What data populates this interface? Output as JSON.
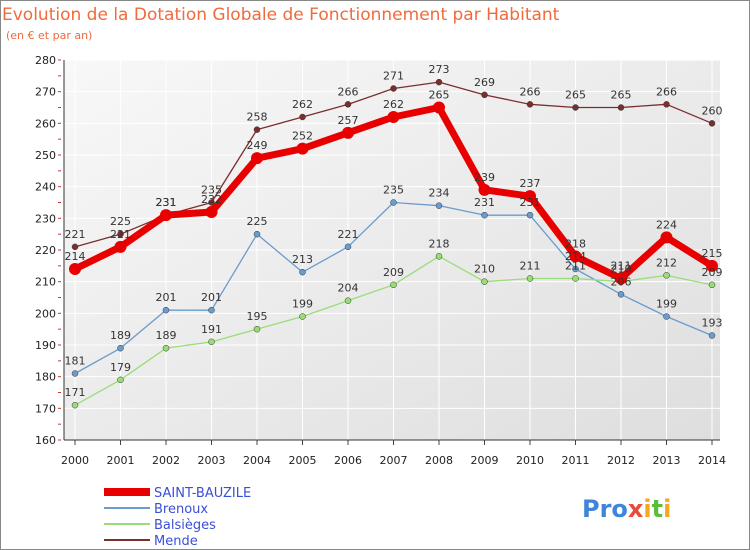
{
  "chart_data": {
    "type": "line",
    "title": "Evolution de la Dotation Globale de Fonctionnement par Habitant",
    "subtitle": "(en € et par an)",
    "categories": [
      "2000",
      "2001",
      "2002",
      "2003",
      "2004",
      "2005",
      "2006",
      "2007",
      "2008",
      "2009",
      "2010",
      "2011",
      "2012",
      "2013",
      "2014"
    ],
    "ylim": [
      160,
      280
    ],
    "yticks": [
      160,
      170,
      180,
      190,
      200,
      210,
      220,
      230,
      240,
      250,
      260,
      270,
      280
    ],
    "grid": true,
    "series": [
      {
        "name": "SAINT-BAUZILE",
        "color": "#e80000",
        "values": [
          214,
          221,
          231,
          232,
          249,
          252,
          257,
          262,
          265,
          239,
          237,
          218,
          211,
          224,
          215
        ]
      },
      {
        "name": "Brenoux",
        "color": "#6a9ccc",
        "values": [
          181,
          189,
          201,
          201,
          225,
          213,
          221,
          235,
          234,
          231,
          231,
          214,
          206,
          199,
          193
        ]
      },
      {
        "name": "Balsièges",
        "color": "#99dd77",
        "values": [
          171,
          179,
          189,
          191,
          195,
          199,
          204,
          209,
          218,
          210,
          211,
          211,
          210,
          212,
          209
        ]
      },
      {
        "name": "Mende",
        "color": "#7a2e2e",
        "values": [
          221,
          225,
          231,
          235,
          258,
          262,
          266,
          271,
          273,
          269,
          266,
          265,
          265,
          266,
          260
        ]
      }
    ],
    "legend_position": "bottom-left"
  },
  "logo": {
    "text": "Proxiti"
  }
}
